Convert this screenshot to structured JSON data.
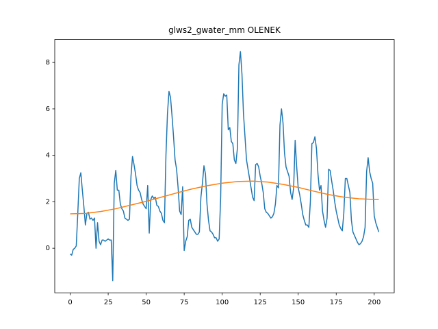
{
  "chart_data": {
    "type": "line",
    "title": "glws2_gwater_mm OLENEK",
    "xlim": [
      -10.15,
      213.15
    ],
    "ylim": [
      -1.92,
      8.99
    ],
    "xticks": [
      0,
      25,
      50,
      75,
      100,
      125,
      150,
      175,
      200
    ],
    "yticks": [
      0,
      2,
      4,
      6,
      8
    ],
    "series": [
      {
        "color": "#1f77b4",
        "x": [
          0,
          1,
          2,
          3,
          4,
          5,
          6,
          7,
          8,
          9,
          10,
          11,
          12,
          13,
          14,
          15,
          16,
          17,
          18,
          19,
          20,
          21,
          22,
          23,
          24,
          25,
          26,
          27,
          28,
          29,
          30,
          31,
          32,
          33,
          34,
          35,
          36,
          37,
          38,
          39,
          40,
          41,
          42,
          43,
          44,
          45,
          46,
          47,
          48,
          49,
          50,
          51,
          52,
          53,
          54,
          55,
          56,
          57,
          58,
          59,
          60,
          61,
          62,
          63,
          64,
          65,
          66,
          67,
          68,
          69,
          70,
          71,
          72,
          73,
          74,
          75,
          76,
          77,
          78,
          79,
          80,
          81,
          82,
          83,
          84,
          85,
          86,
          87,
          88,
          89,
          90,
          91,
          92,
          93,
          94,
          95,
          96,
          97,
          98,
          99,
          100,
          101,
          102,
          103,
          104,
          105,
          106,
          107,
          108,
          109,
          110,
          111,
          112,
          113,
          114,
          115,
          116,
          117,
          118,
          119,
          120,
          121,
          122,
          123,
          124,
          125,
          126,
          127,
          128,
          129,
          130,
          131,
          132,
          133,
          134,
          135,
          136,
          137,
          138,
          139,
          140,
          141,
          142,
          143,
          144,
          145,
          146,
          147,
          148,
          149,
          150,
          151,
          152,
          153,
          154,
          155,
          156,
          157,
          158,
          159,
          160,
          161,
          162,
          163,
          164,
          165,
          166,
          167,
          168,
          169,
          170,
          171,
          172,
          173,
          174,
          175,
          176,
          177,
          178,
          179,
          180,
          181,
          182,
          183,
          184,
          185,
          186,
          187,
          188,
          189,
          190,
          191,
          192,
          193,
          194,
          195,
          196,
          197,
          198,
          199,
          200,
          201,
          202,
          203
        ],
        "values": [
          -0.25,
          -0.3,
          -0.05,
          0.0,
          0.1,
          1.5,
          3.0,
          3.25,
          2.5,
          1.8,
          1.0,
          1.5,
          1.55,
          1.25,
          1.3,
          1.2,
          1.3,
          0.0,
          1.1,
          0.3,
          0.15,
          0.35,
          0.35,
          0.3,
          0.35,
          0.4,
          0.35,
          0.35,
          -1.4,
          2.8,
          3.35,
          2.5,
          2.5,
          1.9,
          1.7,
          1.6,
          1.3,
          1.25,
          1.2,
          1.25,
          3.1,
          3.95,
          3.6,
          3.2,
          2.7,
          2.5,
          2.4,
          2.1,
          1.9,
          1.8,
          1.7,
          2.7,
          0.65,
          2.1,
          2.25,
          2.15,
          2.2,
          1.85,
          1.8,
          1.6,
          1.5,
          1.2,
          1.1,
          4.0,
          5.8,
          6.75,
          6.5,
          5.7,
          4.8,
          3.8,
          3.4,
          2.6,
          1.6,
          1.45,
          2.65,
          -0.1,
          0.3,
          0.5,
          1.2,
          1.25,
          0.9,
          0.8,
          0.7,
          0.6,
          0.6,
          0.7,
          2.2,
          2.8,
          3.55,
          3.2,
          1.9,
          1.2,
          0.75,
          0.7,
          0.6,
          0.45,
          0.45,
          0.3,
          0.4,
          2.2,
          6.2,
          6.65,
          6.55,
          6.6,
          5.1,
          5.2,
          4.6,
          4.5,
          3.8,
          3.65,
          4.3,
          7.9,
          8.47,
          7.5,
          5.8,
          4.8,
          3.8,
          3.4,
          3.0,
          2.6,
          2.2,
          2.05,
          3.6,
          3.65,
          3.5,
          3.1,
          2.8,
          2.4,
          1.7,
          1.55,
          1.5,
          1.4,
          1.3,
          1.35,
          1.5,
          1.9,
          2.7,
          2.6,
          5.3,
          6.0,
          5.4,
          4.1,
          3.5,
          3.3,
          3.1,
          2.4,
          2.1,
          2.6,
          4.65,
          3.5,
          2.6,
          2.3,
          1.9,
          1.45,
          1.2,
          1.0,
          1.0,
          0.9,
          2.0,
          4.5,
          4.55,
          4.8,
          4.3,
          3.2,
          2.5,
          2.7,
          1.6,
          1.2,
          0.9,
          1.3,
          3.4,
          3.35,
          2.9,
          2.5,
          2.0,
          1.6,
          1.3,
          1.0,
          0.85,
          0.75,
          1.5,
          3.0,
          3.0,
          2.7,
          2.4,
          1.2,
          0.7,
          0.55,
          0.4,
          0.25,
          0.15,
          0.2,
          0.3,
          0.5,
          0.9,
          3.3,
          3.9,
          3.3,
          3.0,
          2.8,
          1.4,
          1.1,
          0.9,
          0.7
        ]
      },
      {
        "color": "#ff7f0e",
        "x": [
          0,
          10,
          20,
          30,
          40,
          50,
          60,
          70,
          80,
          90,
          100,
          110,
          120,
          130,
          140,
          150,
          160,
          170,
          180,
          190,
          200,
          203
        ],
        "values": [
          1.48,
          1.5,
          1.58,
          1.7,
          1.86,
          2.02,
          2.2,
          2.38,
          2.55,
          2.69,
          2.8,
          2.87,
          2.89,
          2.85,
          2.75,
          2.62,
          2.46,
          2.31,
          2.2,
          2.13,
          2.1,
          2.1
        ]
      }
    ]
  }
}
